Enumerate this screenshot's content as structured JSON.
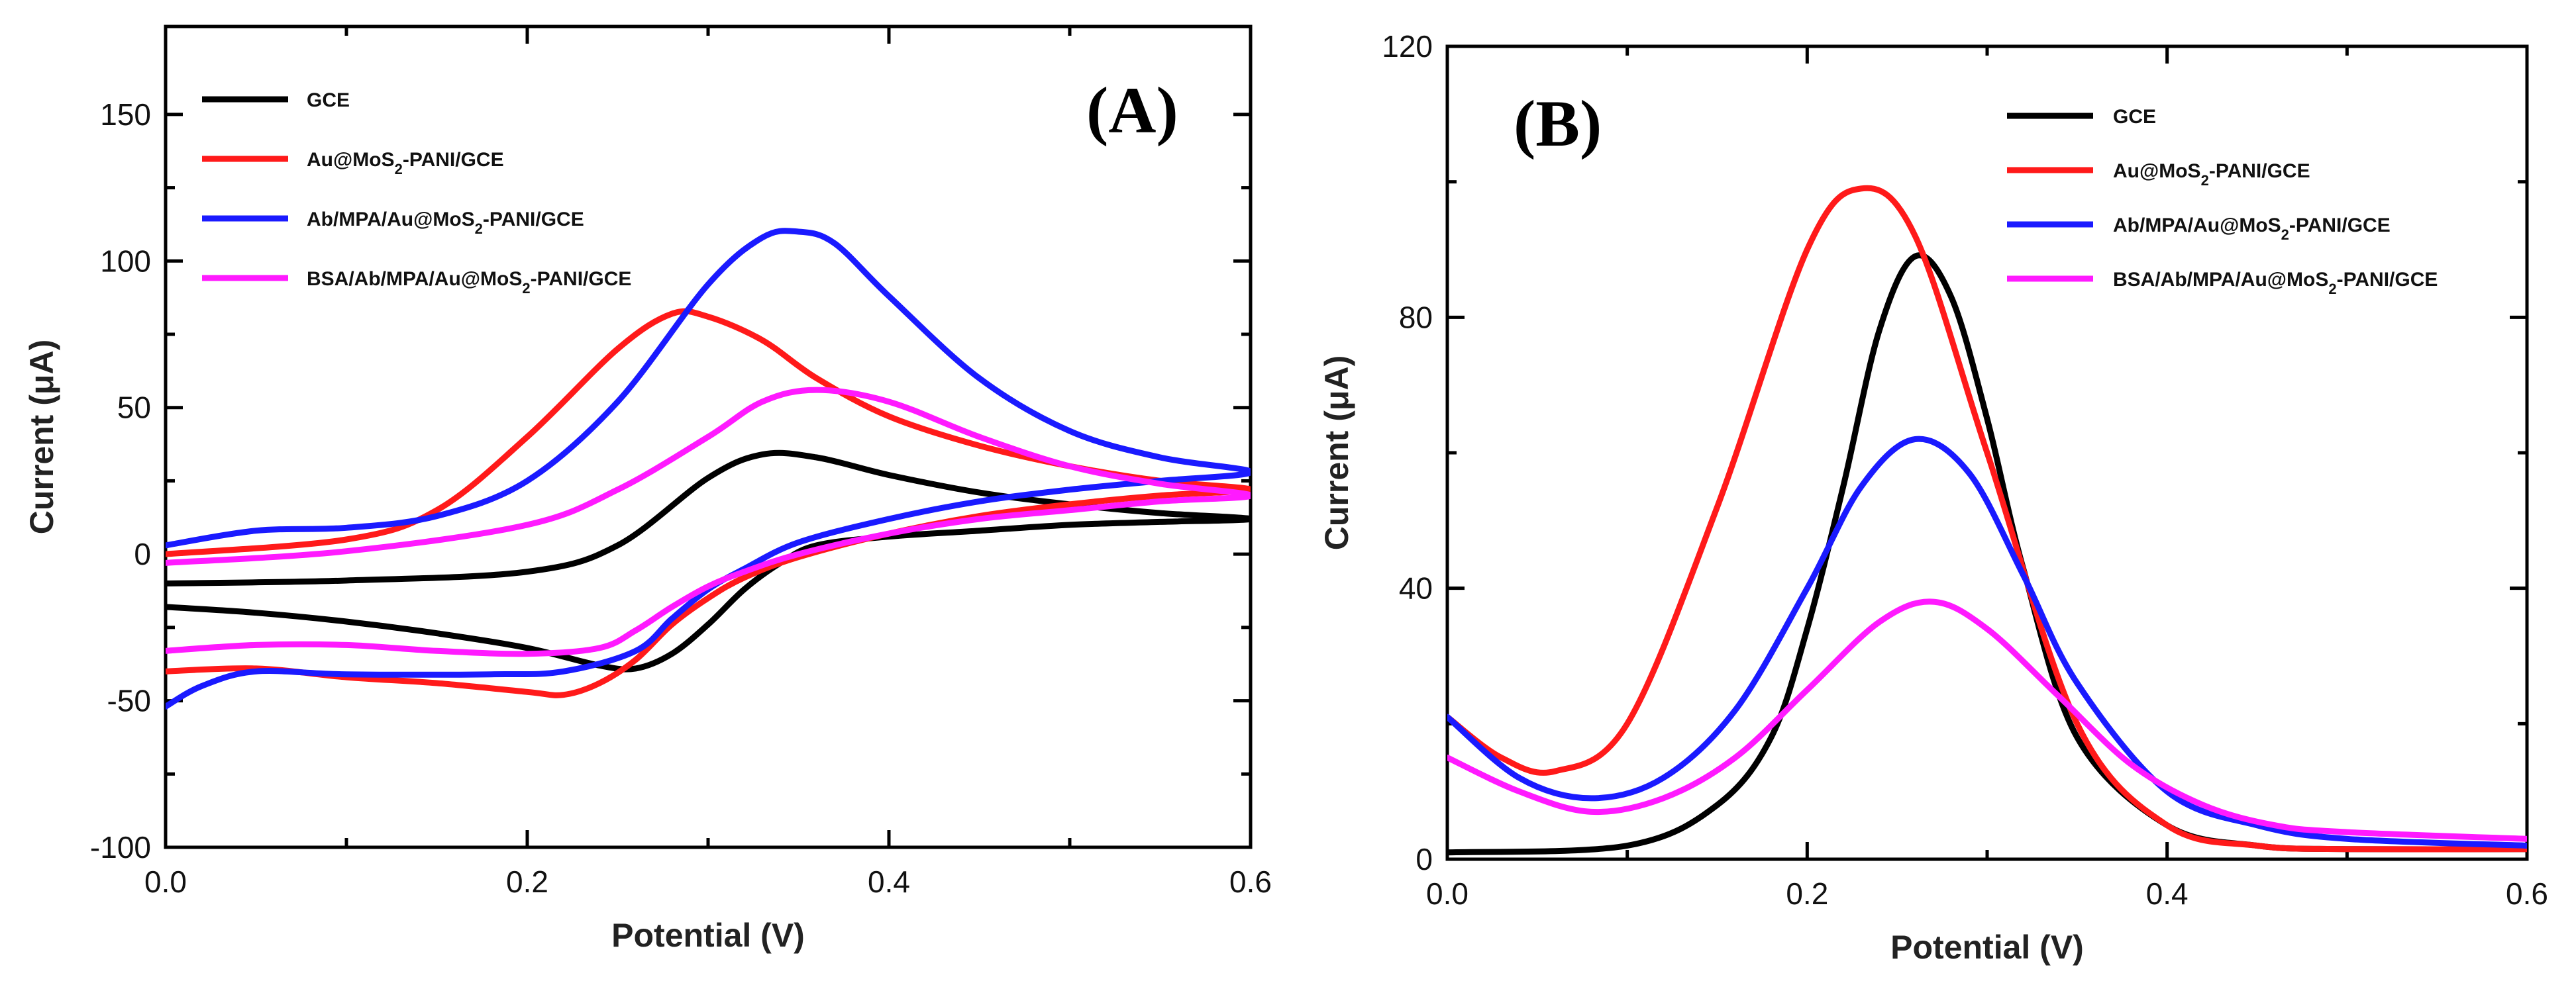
{
  "colors": {
    "GCE": "#000000",
    "Au": "#ff1a1a",
    "Ab": "#1a1aff",
    "BSA": "#ff1aff"
  },
  "chart_data": [
    {
      "id": "A",
      "type": "line",
      "panel_label": "(A)",
      "xlabel": "Potential (V)",
      "ylabel": "Current (μA)",
      "xlim": [
        0.0,
        0.6
      ],
      "ylim": [
        -100,
        180
      ],
      "xticks": [
        0.0,
        0.2,
        0.4,
        0.6
      ],
      "xtick_labels": [
        "0.0",
        "0.2",
        "0.4",
        "0.6"
      ],
      "yticks": [
        -100,
        -50,
        0,
        50,
        100,
        150
      ],
      "ytick_labels": [
        "-100",
        "-50",
        "0",
        "50",
        "100",
        "150"
      ],
      "legend_position": "top-left",
      "series": [
        {
          "key": "GCE",
          "name": "GCE",
          "legend": {
            "pre": "GCE",
            "sub": "",
            "post": ""
          },
          "x": [
            0.0,
            0.1,
            0.2,
            0.25,
            0.3,
            0.33,
            0.36,
            0.4,
            0.45,
            0.5,
            0.55,
            0.6,
            0.55,
            0.5,
            0.45,
            0.4,
            0.36,
            0.34,
            0.32,
            0.3,
            0.28,
            0.26,
            0.24,
            0.2,
            0.15,
            0.1,
            0.05,
            0.0
          ],
          "y": [
            -10,
            -9,
            -6,
            3,
            26,
            34,
            33,
            27,
            21,
            17,
            14,
            12,
            11,
            10,
            8,
            6,
            3,
            -3,
            -12,
            -24,
            -34,
            -39,
            -38,
            -32,
            -27,
            -23,
            -20,
            -18
          ]
        },
        {
          "key": "Au",
          "name": "Au@MoS2-PANI/GCE",
          "legend": {
            "pre": "Au@MoS",
            "sub": "2",
            "post": "-PANI/GCE"
          },
          "x": [
            0.0,
            0.1,
            0.15,
            0.2,
            0.25,
            0.28,
            0.3,
            0.33,
            0.36,
            0.4,
            0.45,
            0.5,
            0.55,
            0.6,
            0.55,
            0.5,
            0.45,
            0.4,
            0.35,
            0.32,
            0.3,
            0.28,
            0.26,
            0.24,
            0.22,
            0.2,
            0.15,
            0.1,
            0.05,
            0.0
          ],
          "y": [
            0,
            5,
            15,
            40,
            70,
            82,
            81,
            73,
            60,
            47,
            37,
            30,
            25,
            22,
            20,
            17,
            13,
            7,
            -1,
            -8,
            -15,
            -24,
            -36,
            -44,
            -48,
            -47,
            -44,
            -42,
            -39,
            -40
          ],
          "close": true
        },
        {
          "key": "Ab",
          "name": "Ab/MPA/Au@MoS2-PANI/GCE",
          "legend": {
            "pre": "Ab/MPA/Au@MoS",
            "sub": "2",
            "post": "-PANI/GCE"
          },
          "x": [
            0.0,
            0.05,
            0.1,
            0.15,
            0.2,
            0.25,
            0.3,
            0.33,
            0.35,
            0.37,
            0.4,
            0.45,
            0.5,
            0.55,
            0.6,
            0.55,
            0.5,
            0.45,
            0.4,
            0.35,
            0.32,
            0.3,
            0.28,
            0.26,
            0.22,
            0.18,
            0.1,
            0.05,
            0.02,
            0.0
          ],
          "y": [
            3,
            8,
            9,
            13,
            25,
            52,
            92,
            108,
            110,
            106,
            88,
            60,
            42,
            33,
            28,
            25,
            22,
            18,
            12,
            4,
            -5,
            -12,
            -22,
            -33,
            -40,
            -41,
            -41,
            -40,
            -45,
            -52
          ]
        },
        {
          "key": "BSA",
          "name": "BSA/Ab/MPA/Au@MoS2-PANI/GCE",
          "legend": {
            "pre": "BSA/Ab/MPA/Au@MoS",
            "sub": "2",
            "post": "-PANI/GCE"
          },
          "x": [
            0.0,
            0.1,
            0.2,
            0.25,
            0.3,
            0.33,
            0.36,
            0.4,
            0.45,
            0.5,
            0.55,
            0.6,
            0.55,
            0.5,
            0.45,
            0.4,
            0.35,
            0.32,
            0.3,
            0.28,
            0.26,
            0.24,
            0.2,
            0.15,
            0.1,
            0.05,
            0.0
          ],
          "y": [
            -3,
            1,
            10,
            22,
            40,
            52,
            56,
            52,
            40,
            30,
            24,
            20,
            18,
            15,
            12,
            7,
            0,
            -6,
            -11,
            -18,
            -26,
            -32,
            -34,
            -33,
            -31,
            -31,
            -33
          ]
        }
      ]
    },
    {
      "id": "B",
      "type": "line",
      "panel_label": "(B)",
      "xlabel": "Potential (V)",
      "ylabel": "Current (μA)",
      "xlim": [
        0.0,
        0.6
      ],
      "ylim": [
        0,
        120
      ],
      "xticks": [
        0.0,
        0.2,
        0.4,
        0.6
      ],
      "xtick_labels": [
        "0.0",
        "0.2",
        "0.4",
        "0.6"
      ],
      "yticks": [
        0,
        40,
        80,
        120
      ],
      "ytick_labels": [
        "0",
        "40",
        "80",
        "120"
      ],
      "legend_position": "top-right",
      "series": [
        {
          "key": "GCE",
          "name": "GCE",
          "legend": {
            "pre": "GCE",
            "sub": "",
            "post": ""
          },
          "x": [
            0.0,
            0.1,
            0.15,
            0.18,
            0.2,
            0.22,
            0.24,
            0.26,
            0.28,
            0.3,
            0.32,
            0.35,
            0.4,
            0.45,
            0.5,
            0.6
          ],
          "y": [
            1,
            2,
            8,
            18,
            34,
            55,
            78,
            89,
            83,
            65,
            43,
            18,
            5,
            2,
            1.5,
            1.5
          ]
        },
        {
          "key": "Au",
          "name": "Au@MoS2-PANI/GCE",
          "legend": {
            "pre": "Au@MoS",
            "sub": "2",
            "post": "-PANI/GCE"
          },
          "x": [
            0.0,
            0.03,
            0.06,
            0.1,
            0.15,
            0.2,
            0.23,
            0.26,
            0.3,
            0.35,
            0.4,
            0.45,
            0.5,
            0.6
          ],
          "y": [
            21,
            15,
            13,
            20,
            52,
            90,
            99,
            92,
            60,
            20,
            5,
            2,
            1.5,
            1.5
          ]
        },
        {
          "key": "Ab",
          "name": "Ab/MPA/Au@MoS2-PANI/GCE",
          "legend": {
            "pre": "Ab/MPA/Au@MoS",
            "sub": "2",
            "post": "-PANI/GCE"
          },
          "x": [
            0.0,
            0.04,
            0.08,
            0.12,
            0.16,
            0.2,
            0.23,
            0.26,
            0.29,
            0.32,
            0.35,
            0.4,
            0.45,
            0.5,
            0.6
          ],
          "y": [
            21,
            12,
            9,
            12,
            22,
            40,
            55,
            62,
            57,
            42,
            26,
            10,
            5,
            3,
            2
          ]
        },
        {
          "key": "BSA",
          "name": "BSA/Ab/MPA/Au@MoS2-PANI/GCE",
          "legend": {
            "pre": "BSA/Ab/MPA/Au@MoS",
            "sub": "2",
            "post": "-PANI/GCE"
          },
          "x": [
            0.0,
            0.04,
            0.08,
            0.12,
            0.16,
            0.2,
            0.24,
            0.27,
            0.3,
            0.34,
            0.38,
            0.42,
            0.46,
            0.5,
            0.6
          ],
          "y": [
            15,
            10,
            7,
            9,
            15,
            25,
            35,
            38,
            34,
            24,
            14,
            8,
            5,
            4,
            3
          ]
        }
      ]
    }
  ]
}
